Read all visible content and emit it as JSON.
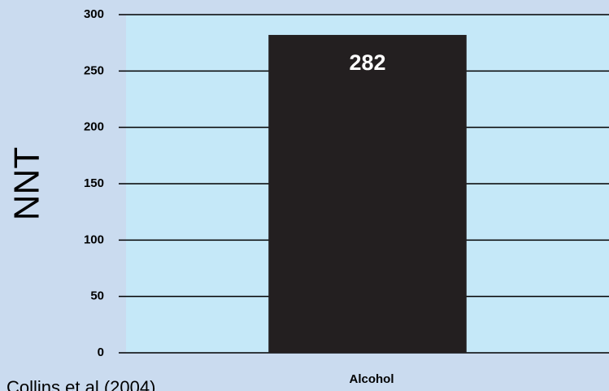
{
  "chart_data": {
    "type": "bar",
    "ylabel": "NNT",
    "categories": [
      "Alcohol"
    ],
    "values": [
      282
    ],
    "color": "#231f20",
    "ylim": [
      0,
      300
    ],
    "yticks": [
      0,
      50,
      100,
      150,
      200,
      250,
      300
    ],
    "grid": true,
    "plot_background": "#c5e8f8",
    "source": "Collins et al (2004)"
  }
}
